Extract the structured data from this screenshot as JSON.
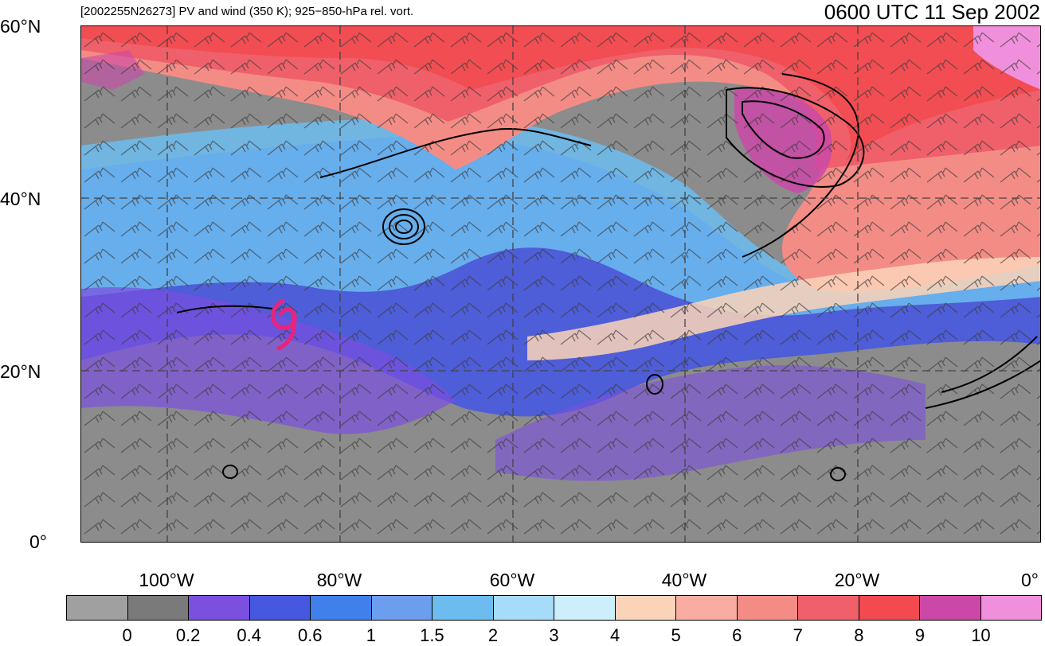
{
  "header": {
    "left_title": "[2002255N26273] PV and wind (350 K); 925−850-hPa rel. vort.",
    "right_title": "0600 UTC 11 Sep 2002"
  },
  "map": {
    "lat_labels": [
      "60°N",
      "40°N",
      "20°N",
      "0°"
    ],
    "lon_labels": [
      "100°W",
      "80°W",
      "60°W",
      "40°W",
      "20°W",
      "0°"
    ],
    "storm_symbol": "tropical-cyclone-icon",
    "storm_color": "#e8247c"
  },
  "colorbar": {
    "colors": [
      "#a0a0a0",
      "#7a7a7a",
      "#7b4fe0",
      "#4758e0",
      "#3f80ea",
      "#6c9ef0",
      "#6cbcf0",
      "#a6dcf7",
      "#cdeefb",
      "#fbd3b8",
      "#f9aca0",
      "#f48c86",
      "#f0606a",
      "#f24a4e",
      "#cb48a8",
      "#f090dc"
    ],
    "labels": [
      "0",
      "0.2",
      "0.4",
      "0.6",
      "1",
      "1.5",
      "2",
      "3",
      "4",
      "5",
      "6",
      "7",
      "8",
      "9",
      "10"
    ]
  }
}
